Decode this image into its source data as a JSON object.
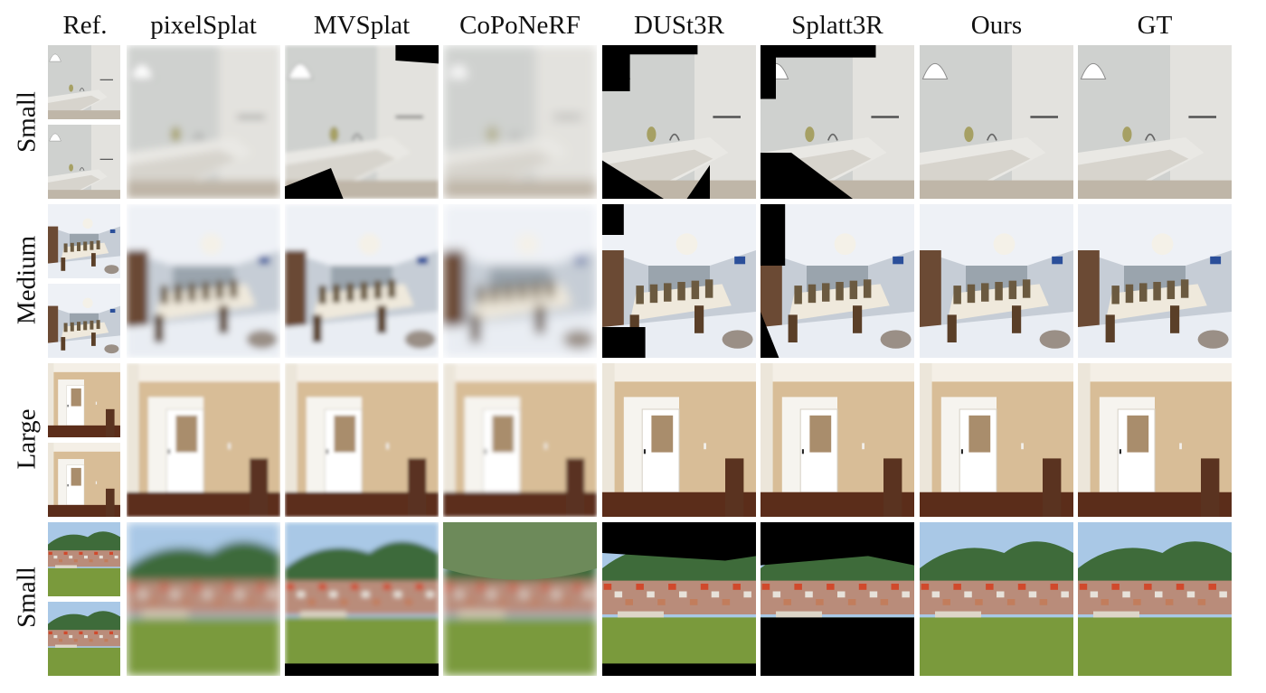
{
  "columns": [
    "Ref.",
    "pixelSplat",
    "MVSplat",
    "CoPoNeRF",
    "DUSt3R",
    "Splatt3R",
    "Ours",
    "GT"
  ],
  "rows": [
    {
      "label": "Small",
      "scene": "bathroom"
    },
    {
      "label": "Medium",
      "scene": "dining"
    },
    {
      "label": "Large",
      "scene": "hallway"
    },
    {
      "label": "Small",
      "scene": "hillside"
    }
  ],
  "palette": {
    "bathroom_wall": "#d9dad8",
    "bathroom_tub": "#e9e8e4",
    "dining_ceiling": "#eef1f6",
    "dining_wood": "#6b4a34",
    "hallway_wall": "#d8bd97",
    "hallway_floor": "#5b2d1a",
    "hill_sky": "#a9c8e6",
    "hill_grass": "#7a9a3c"
  }
}
